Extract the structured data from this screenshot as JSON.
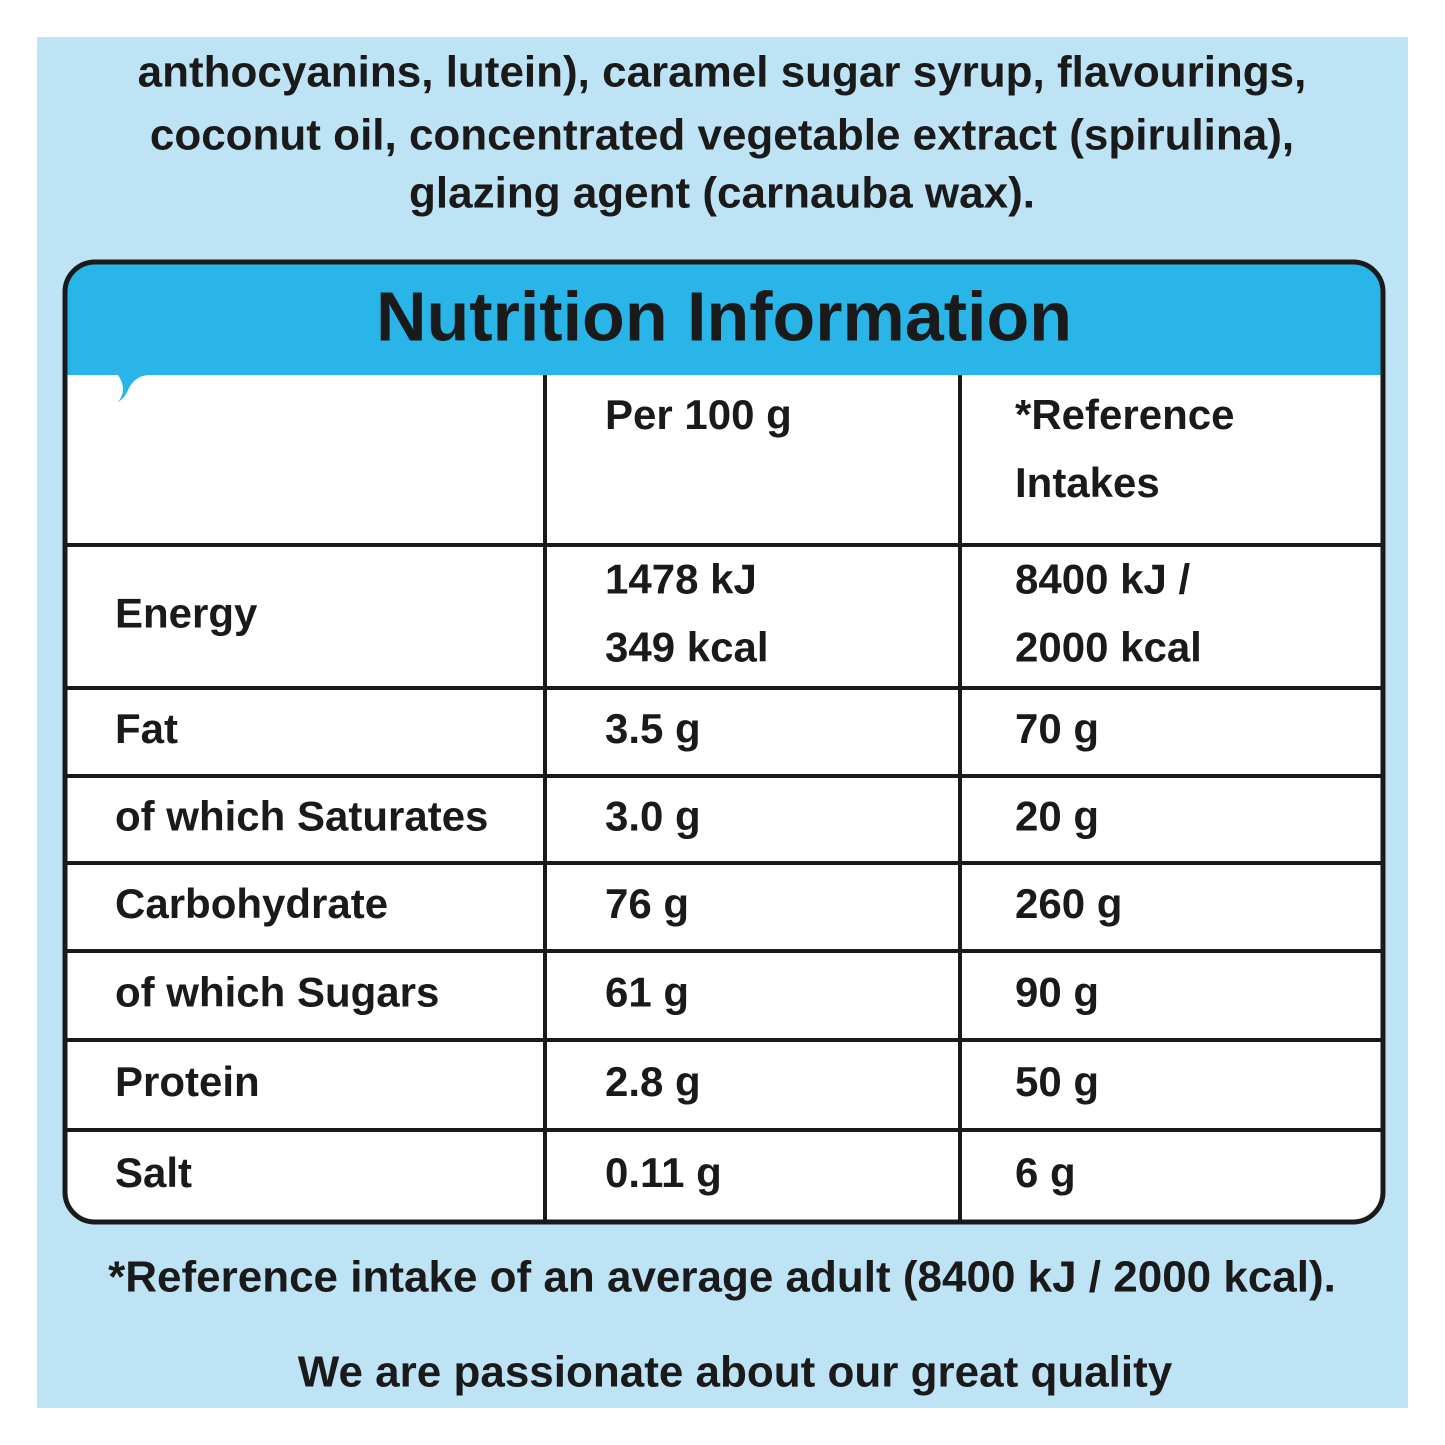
{
  "ingredients": [
    "anthocyanins, lutein), caramel sugar syrup, flavourings,",
    "coconut oil, concentrated vegetable extract (spirulina),",
    "glazing agent (carnauba wax)."
  ],
  "table": {
    "title": "Nutrition Information",
    "header": [
      [
        "Per 100 g"
      ],
      [
        "*Reference",
        "Intakes"
      ]
    ],
    "rows": [
      [
        "Energy",
        [
          "1478 kJ",
          "349 kcal"
        ],
        [
          "8400 kJ /",
          "2000 kcal"
        ]
      ],
      [
        "Fat",
        "3.5 g",
        "70 g"
      ],
      [
        "of which Saturates",
        "3.0 g",
        "20 g"
      ],
      [
        "Carbohydrate",
        "76 g",
        "260 g"
      ],
      [
        "of which Sugars",
        "61 g",
        "90 g"
      ],
      [
        "Protein",
        "2.8 g",
        "50 g"
      ],
      [
        "Salt",
        "0.11 g",
        "6 g"
      ]
    ]
  },
  "footnote": "*Reference intake of an average adult (8400 kJ / 2000 kcal).",
  "tagline": "We are passionate about our great quality"
}
